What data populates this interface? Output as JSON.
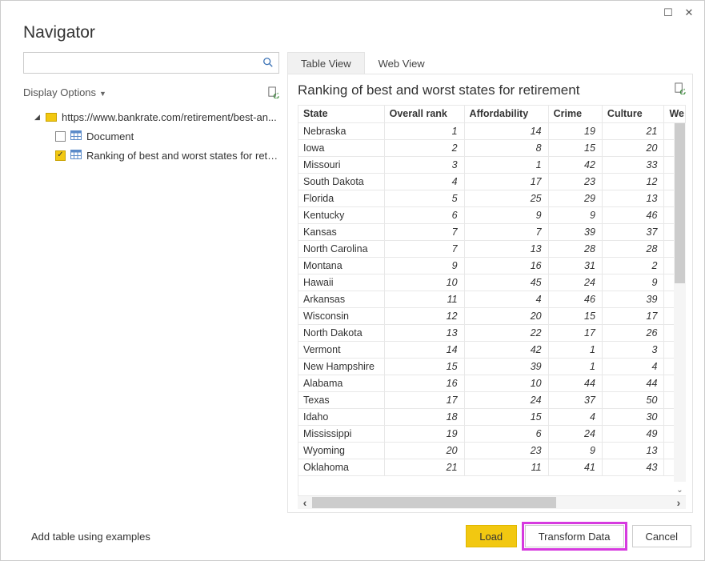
{
  "window": {
    "title": "Navigator",
    "maximize_glyph": "☐",
    "close_glyph": "✕"
  },
  "search": {
    "placeholder": ""
  },
  "display_options": {
    "label": "Display Options"
  },
  "tree": {
    "root_label": "https://www.bankrate.com/retirement/best-an...",
    "items": [
      {
        "label": "Document",
        "checked": false
      },
      {
        "label": "Ranking of best and worst states for retire...",
        "checked": true
      }
    ]
  },
  "tabs": {
    "table_view": "Table View",
    "web_view": "Web View",
    "active": "table_view"
  },
  "preview": {
    "title": "Ranking of best and worst states for retirement",
    "columns": [
      "State",
      "Overall rank",
      "Affordability",
      "Crime",
      "Culture",
      "We"
    ],
    "column_types": [
      "txt",
      "num",
      "num",
      "num",
      "num",
      "num"
    ],
    "rows": [
      [
        "Nebraska",
        1,
        14,
        19,
        21
      ],
      [
        "Iowa",
        2,
        8,
        15,
        20
      ],
      [
        "Missouri",
        3,
        1,
        42,
        33
      ],
      [
        "South Dakota",
        4,
        17,
        23,
        12
      ],
      [
        "Florida",
        5,
        25,
        29,
        13
      ],
      [
        "Kentucky",
        6,
        9,
        9,
        46
      ],
      [
        "Kansas",
        7,
        7,
        39,
        37
      ],
      [
        "North Carolina",
        7,
        13,
        28,
        28
      ],
      [
        "Montana",
        9,
        16,
        31,
        2
      ],
      [
        "Hawaii",
        10,
        45,
        24,
        9
      ],
      [
        "Arkansas",
        11,
        4,
        46,
        39
      ],
      [
        "Wisconsin",
        12,
        20,
        15,
        17
      ],
      [
        "North Dakota",
        13,
        22,
        17,
        26
      ],
      [
        "Vermont",
        14,
        42,
        1,
        3
      ],
      [
        "New Hampshire",
        15,
        39,
        1,
        4
      ],
      [
        "Alabama",
        16,
        10,
        44,
        44
      ],
      [
        "Texas",
        17,
        24,
        37,
        50
      ],
      [
        "Idaho",
        18,
        15,
        4,
        30
      ],
      [
        "Mississippi",
        19,
        6,
        24,
        49
      ],
      [
        "Wyoming",
        20,
        23,
        9,
        13
      ],
      [
        "Oklahoma",
        21,
        11,
        41,
        43
      ]
    ]
  },
  "footer": {
    "add_examples": "Add table using examples",
    "load": "Load",
    "transform": "Transform Data",
    "cancel": "Cancel"
  },
  "colors": {
    "accent_yellow": "#f2c811",
    "highlight_pink": "#d63adf",
    "border_gray": "#e4e4e4",
    "scrollbar_thumb": "#cccccc"
  }
}
